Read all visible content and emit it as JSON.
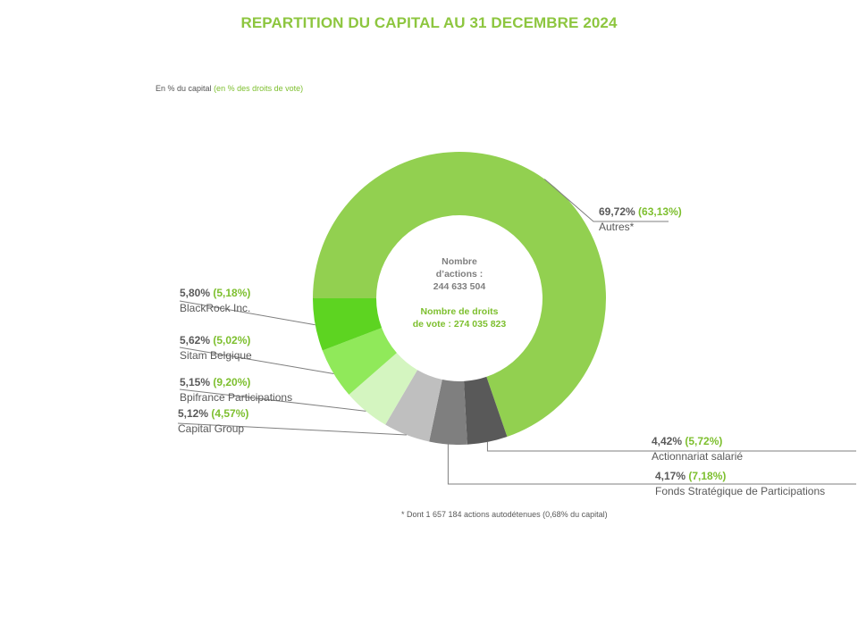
{
  "title": "REPARTITION DU CAPITAL AU 31 DECEMBRE 2024",
  "subtitle": {
    "capital": "En % du capital",
    "votes": "(en % des droits de vote)"
  },
  "center": {
    "shares_label_1": "Nombre",
    "shares_label_2": "d’actions :",
    "shares_value": "244 633 504",
    "votes_label": "Nombre de droits",
    "votes_value": "de vote : 274 035 823"
  },
  "footnote": "* Dont 1 657 184 actions autodétenues  (0,68% du capital)",
  "chart_data": {
    "type": "donut",
    "unit": "%",
    "series": [
      {
        "name": "Autres*",
        "capital": 69.72,
        "capital_label": "69,72%",
        "votes_label": "(63,13%)",
        "votes": 63.13,
        "color": "#92d050"
      },
      {
        "name": "Actionnariat salarié",
        "capital": 4.42,
        "capital_label": "4,42%",
        "votes_label": "(5,72%)",
        "votes": 5.72,
        "color": "#595959"
      },
      {
        "name": "Fonds Stratégique de Participations",
        "capital": 4.17,
        "capital_label": "4,17%",
        "votes_label": "(7,18%)",
        "votes": 7.18,
        "color": "#7f7f7f"
      },
      {
        "name": "Capital Group",
        "capital": 5.12,
        "capital_label": "5,12%",
        "votes_label": "(4,57%)",
        "votes": 4.57,
        "color": "#bfbfbf"
      },
      {
        "name": "Bpifrance Participations",
        "capital": 5.15,
        "capital_label": "5,15%",
        "votes_label": "(9,20%)",
        "votes": 9.2,
        "color": "#d4f5c0"
      },
      {
        "name": "Sitam Belgique",
        "capital": 5.62,
        "capital_label": "5,62%",
        "votes_label": "(5,02%)",
        "votes": 5.02,
        "color": "#90e95a"
      },
      {
        "name": "BlackRock Inc.",
        "capital": 5.8,
        "capital_label": "5,80%",
        "votes_label": "(5,18%)",
        "votes": 5.18,
        "color": "#5dd421"
      }
    ]
  }
}
